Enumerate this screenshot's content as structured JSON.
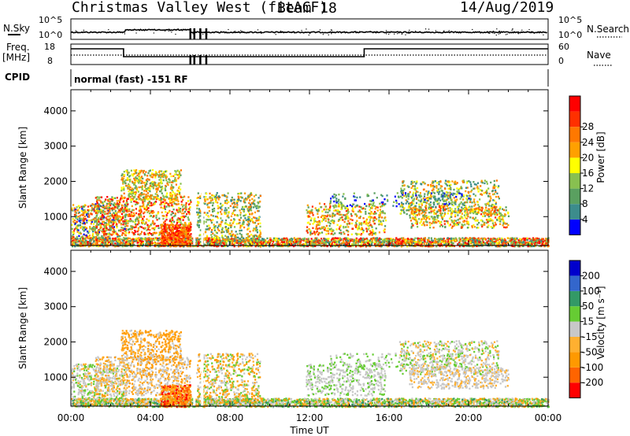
{
  "header": {
    "title": "Christmas Valley West (fitACF)",
    "beam": "Beam 18",
    "date": "14/Aug/2019"
  },
  "mini_panels": {
    "nsky_label": "N.Sky",
    "nsky_ticks": [
      "10^5",
      "10^0"
    ],
    "nsearch_label": "N.Search",
    "nsearch_ticks": [
      "10^5",
      "10^0"
    ],
    "freq_label_1": "Freq.",
    "freq_label_2": "[MHz]",
    "freq_ticks": [
      "18",
      "8"
    ],
    "nave_label": "Nave",
    "nave_ticks": [
      "60",
      "0"
    ],
    "cpid_label": "CPID",
    "cpid_text": "normal (fast) -151 RF"
  },
  "colors": {
    "power": [
      "#0000ff",
      "#3c8c8c",
      "#5aa060",
      "#88c050",
      "#ffff00",
      "#ffa000",
      "#ff7800",
      "#ff3000",
      "#ff0000"
    ],
    "velocity": [
      "#ff0000",
      "#ff6400",
      "#ff9900",
      "#ffb030",
      "#c8c8c8",
      "#66cc33",
      "#339966",
      "#3366cc",
      "#0000cc"
    ]
  },
  "chart_data": [
    {
      "type": "heatmap",
      "name": "power",
      "ylabel": "Slant Range [km]",
      "yticks": [
        1000,
        2000,
        3000,
        4000
      ],
      "ylim": [
        180,
        4600
      ],
      "xlim_hours": [
        0,
        24
      ],
      "colorbar_label": "Power [dB]",
      "colorbar_ticks": [
        "4",
        "8",
        "12",
        "16",
        "20",
        "24",
        "28"
      ],
      "colorbar_range": [
        0,
        30
      ]
    },
    {
      "type": "heatmap",
      "name": "velocity",
      "ylabel": "Slant Range [km]",
      "yticks": [
        1000,
        2000,
        3000,
        4000
      ],
      "ylim": [
        180,
        4600
      ],
      "xlim_hours": [
        0,
        24
      ],
      "xlabel": "Time UT",
      "xticks": [
        "00:00",
        "04:00",
        "08:00",
        "12:00",
        "16:00",
        "20:00",
        "00:00"
      ],
      "colorbar_label": "Velocity [m s⁻¹]",
      "colorbar_ticks": [
        "-200",
        "-100",
        "-50",
        "-15",
        "15",
        "50",
        "100",
        "200"
      ]
    }
  ]
}
